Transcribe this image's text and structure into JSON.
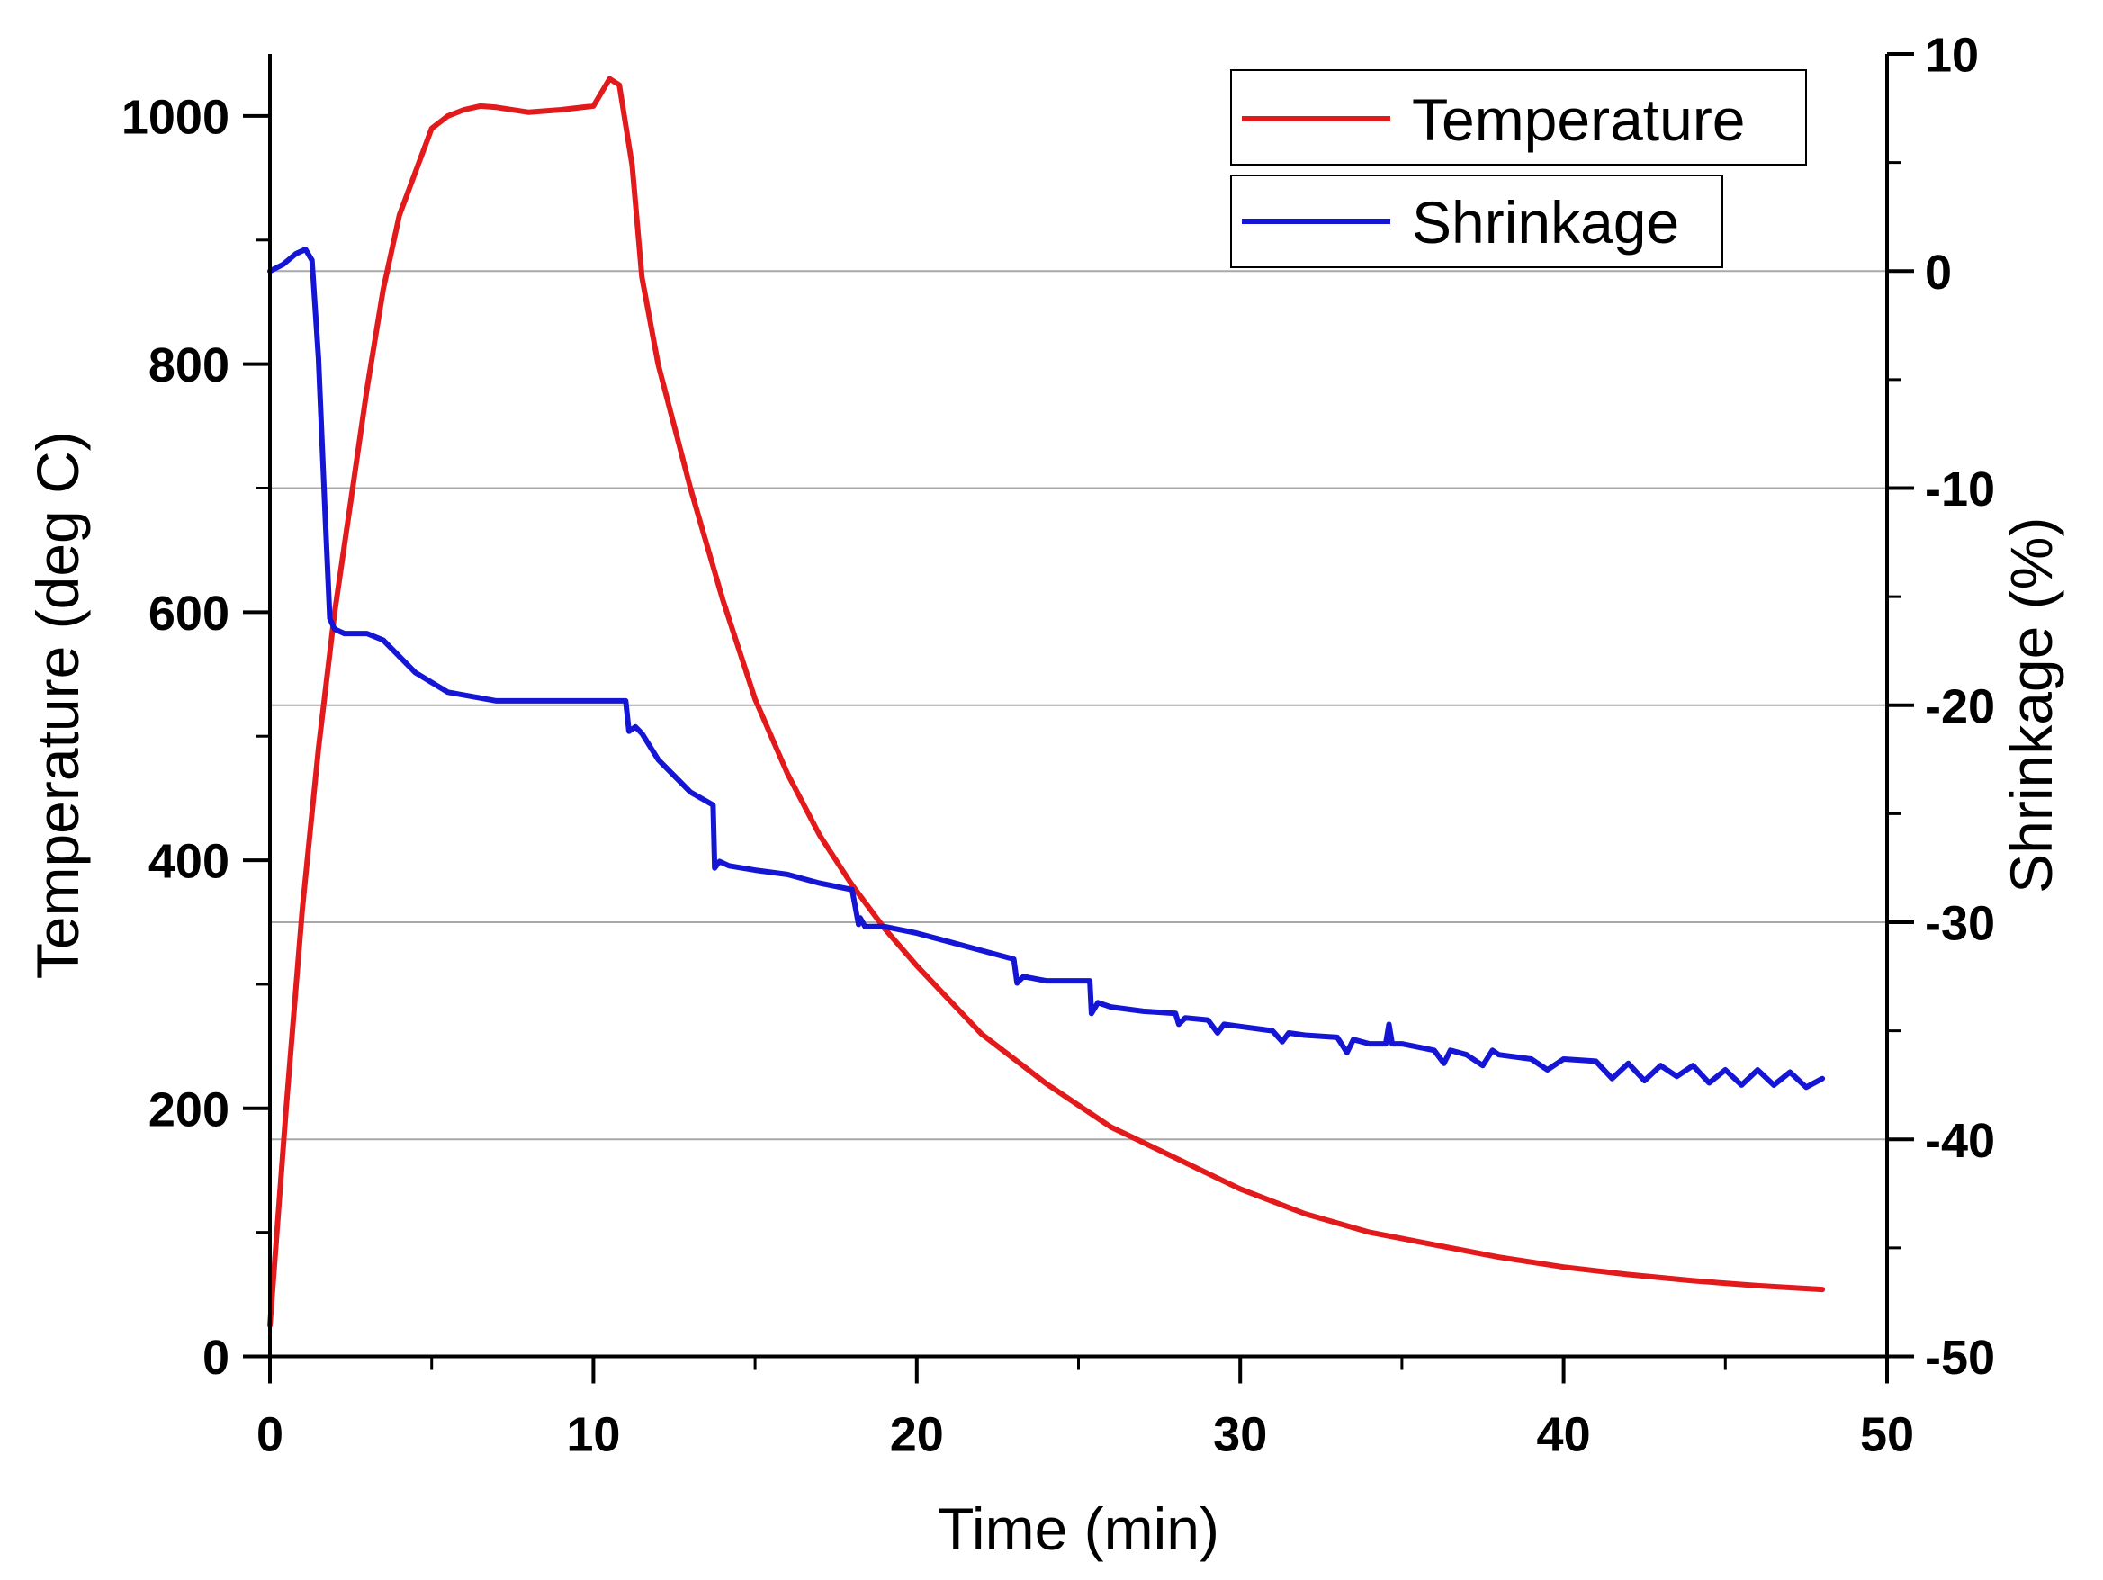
{
  "chart_data": {
    "type": "line",
    "title": "",
    "xlabel": "Time (min)",
    "ylabel_left": "Temperature (deg C)",
    "ylabel_right": "Shrinkage (%)",
    "xlim": [
      0,
      50
    ],
    "ylim_left": [
      0,
      1050
    ],
    "ylim_right": [
      -50,
      10
    ],
    "x_ticks": [
      0,
      10,
      20,
      30,
      40,
      50
    ],
    "x_tick_labels": [
      "0",
      "10",
      "20",
      "30",
      "40",
      "50"
    ],
    "y_left_ticks": [
      0,
      200,
      400,
      600,
      800,
      1000
    ],
    "y_left_tick_labels": [
      "0",
      "200",
      "400",
      "600",
      "800",
      "1000"
    ],
    "y_right_ticks": [
      10,
      0,
      -10,
      -20,
      -30,
      -40,
      -50
    ],
    "y_right_tick_labels": [
      "10",
      "0",
      "-10",
      "-20",
      "-30",
      "-40",
      "-50"
    ],
    "grid": "horizontal at right-axis major ticks",
    "legend_position": "top-right",
    "series": [
      {
        "name": "Temperature",
        "axis": "left",
        "color": "#e31a1c",
        "x": [
          0,
          0.5,
          1,
          1.5,
          2,
          2.5,
          3,
          3.5,
          4,
          5,
          5.5,
          6,
          6.5,
          7,
          8,
          9,
          10,
          10.5,
          10.8,
          11.2,
          11.5,
          12,
          13,
          14,
          15,
          16,
          17,
          18,
          19,
          20,
          22,
          24,
          26,
          28,
          30,
          32,
          34,
          36,
          38,
          40,
          42,
          44,
          46,
          48
        ],
        "values": [
          25,
          200,
          360,
          490,
          600,
          690,
          780,
          860,
          920,
          990,
          1000,
          1005,
          1008,
          1007,
          1003,
          1005,
          1008,
          1030,
          1025,
          960,
          870,
          800,
          700,
          610,
          530,
          470,
          420,
          380,
          345,
          315,
          260,
          220,
          185,
          160,
          135,
          115,
          100,
          90,
          80,
          72,
          66,
          61,
          57,
          54
        ]
      },
      {
        "name": "Shrinkage",
        "axis": "right",
        "color": "#1515d6",
        "x": [
          0,
          0.4,
          0.8,
          1.1,
          1.3,
          1.5,
          1.7,
          1.85,
          2.0,
          2.3,
          3.0,
          3.5,
          4.5,
          5.5,
          7,
          9,
          10,
          11.0,
          11.1,
          11.3,
          11.5,
          12,
          13,
          13.7,
          13.75,
          13.9,
          14.2,
          15,
          16,
          17,
          18.0,
          18.2,
          18.25,
          18.4,
          19,
          20,
          21,
          22,
          23.0,
          23.1,
          23.3,
          24,
          25,
          25.35,
          25.4,
          25.6,
          26,
          27,
          28,
          28.1,
          28.3,
          29,
          29.3,
          29.5,
          30,
          31,
          31.3,
          31.5,
          32,
          33,
          33.3,
          33.5,
          34,
          34.5,
          34.6,
          34.7,
          35,
          36,
          36.3,
          36.5,
          37,
          37.5,
          37.8,
          38,
          39,
          39.5,
          40,
          41,
          41.5,
          42,
          42.5,
          43,
          43.5,
          44,
          44.5,
          45,
          45.5,
          46,
          46.5,
          47,
          47.5,
          48
        ],
        "values": [
          0,
          0.3,
          0.8,
          1.0,
          0.5,
          -4,
          -11,
          -16,
          -16.5,
          -16.7,
          -16.7,
          -17,
          -18.5,
          -19.4,
          -19.8,
          -19.8,
          -19.8,
          -19.8,
          -21.2,
          -21.0,
          -21.3,
          -22.5,
          -24.0,
          -24.6,
          -27.5,
          -27.2,
          -27.4,
          -27.6,
          -27.8,
          -28.2,
          -28.5,
          -30.1,
          -29.8,
          -30.2,
          -30.2,
          -30.5,
          -30.9,
          -31.3,
          -31.7,
          -32.8,
          -32.5,
          -32.7,
          -32.7,
          -32.7,
          -34.2,
          -33.7,
          -33.9,
          -34.1,
          -34.2,
          -34.7,
          -34.4,
          -34.5,
          -35.1,
          -34.7,
          -34.8,
          -35.0,
          -35.5,
          -35.1,
          -35.2,
          -35.3,
          -36.0,
          -35.4,
          -35.6,
          -35.6,
          -34.7,
          -35.6,
          -35.6,
          -35.9,
          -36.5,
          -35.9,
          -36.1,
          -36.6,
          -35.9,
          -36.1,
          -36.3,
          -36.8,
          -36.3,
          -36.4,
          -37.2,
          -36.5,
          -37.3,
          -36.6,
          -37.1,
          -36.6,
          -37.4,
          -36.8,
          -37.5,
          -36.8,
          -37.5,
          -36.9,
          -37.6,
          -37.2
        ]
      }
    ]
  }
}
